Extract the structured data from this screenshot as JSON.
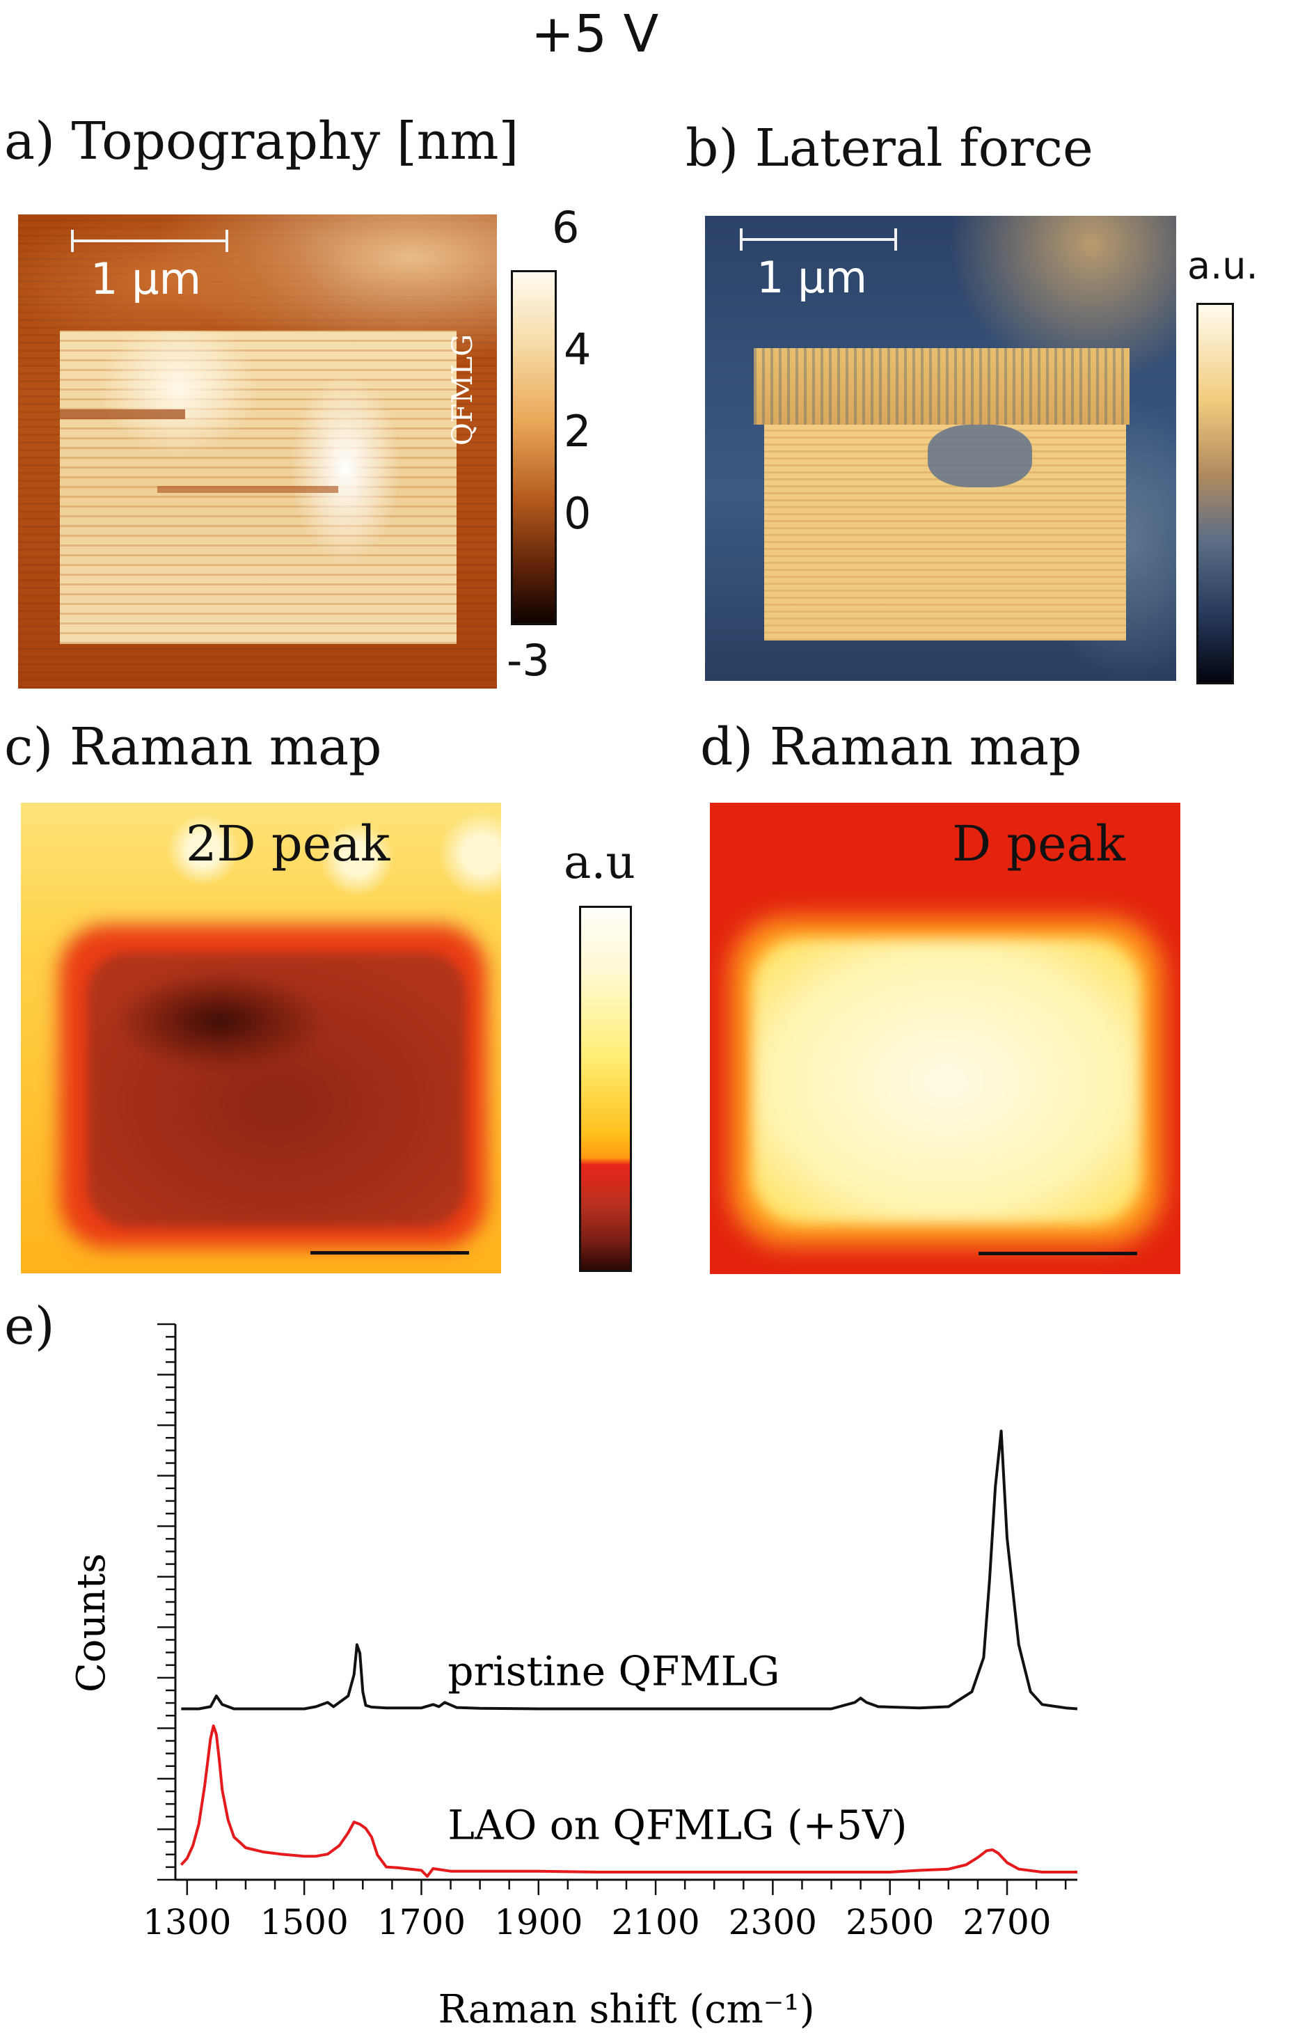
{
  "title": "+5 V",
  "panels": {
    "a": {
      "label": "a) Topography [nm]",
      "scale_label": "1 μm",
      "side_text": "QFMLG",
      "colorbar_ticks": [
        "6",
        "4",
        "2",
        "0",
        "-3"
      ]
    },
    "b": {
      "label": "b) Lateral force",
      "scale_label": "1 μm",
      "colorbar_unit": "a.u."
    },
    "c": {
      "label": "c)    Raman map",
      "peak_label": "2D peak",
      "colorbar_unit": "a.u"
    },
    "d": {
      "label": "d)    Raman map",
      "peak_label": "D peak"
    },
    "e": {
      "label": "e)"
    }
  },
  "colors": {
    "pristine": "#111111",
    "lao": "#e41a1c",
    "topo_high": "#fff6dc",
    "topo_low": "#a8430f",
    "lateral_high": "#f5cf7e",
    "lateral_low": "#3b5477",
    "raman_hot": "#fffbe3",
    "raman_red": "#e8220f"
  },
  "chart_data": {
    "type": "line",
    "xlabel": "Raman shift (cm⁻¹)",
    "ylabel": "Counts",
    "xlim": [
      1280,
      2820
    ],
    "ylim": [
      0,
      130
    ],
    "xticks": [
      1300,
      1500,
      1700,
      1900,
      2100,
      2300,
      2500,
      2700
    ],
    "series": [
      {
        "name": "pristine QFMLG",
        "x": [
          1290,
          1320,
          1340,
          1350,
          1360,
          1380,
          1420,
          1460,
          1500,
          1520,
          1540,
          1550,
          1560,
          1575,
          1585,
          1590,
          1595,
          1600,
          1605,
          1615,
          1640,
          1700,
          1720,
          1730,
          1740,
          1760,
          1800,
          1900,
          2000,
          2100,
          2200,
          2300,
          2400,
          2440,
          2450,
          2460,
          2480,
          2550,
          2600,
          2640,
          2660,
          2670,
          2680,
          2690,
          2700,
          2720,
          2740,
          2760,
          2800,
          2820
        ],
        "y": [
          40,
          40,
          40.5,
          43,
          41,
          40,
          40,
          40,
          40,
          40.5,
          41.5,
          40.5,
          41.5,
          43,
          48,
          55,
          53,
          44,
          40.8,
          40.4,
          40.2,
          40.2,
          41,
          40.5,
          41.5,
          40.3,
          40.1,
          40,
          40,
          40,
          40,
          40,
          40,
          41.5,
          42.5,
          41.5,
          40.5,
          40.2,
          40.5,
          44,
          52,
          70,
          92,
          105,
          80,
          55,
          44,
          41,
          40.2,
          40
        ]
      },
      {
        "name": "LAO on QFMLG  (+5V)",
        "x": [
          1290,
          1300,
          1310,
          1320,
          1330,
          1340,
          1345,
          1350,
          1355,
          1360,
          1370,
          1380,
          1400,
          1430,
          1460,
          1500,
          1520,
          1540,
          1560,
          1575,
          1585,
          1595,
          1605,
          1615,
          1625,
          1640,
          1660,
          1700,
          1710,
          1720,
          1750,
          1800,
          1900,
          2000,
          2100,
          2200,
          2300,
          2400,
          2500,
          2550,
          2600,
          2630,
          2650,
          2665,
          2675,
          2685,
          2700,
          2720,
          2760,
          2800,
          2820
        ],
        "y": [
          3.5,
          5,
          8,
          13,
          22,
          33,
          36,
          34,
          28,
          21,
          14,
          10,
          7.5,
          6.5,
          6,
          5.5,
          5.5,
          6,
          8,
          11,
          13.5,
          13,
          12,
          10,
          5.8,
          3,
          2.8,
          2.2,
          0.8,
          2.6,
          2,
          2,
          2,
          1.8,
          1.8,
          1.8,
          1.8,
          1.8,
          1.8,
          2.2,
          2.5,
          3.5,
          5.2,
          6.8,
          7,
          6.2,
          4,
          2.5,
          1.8,
          1.8,
          1.8
        ]
      }
    ],
    "annotations": [
      "pristine QFMLG",
      "LAO on QFMLG  (+5V)"
    ]
  }
}
